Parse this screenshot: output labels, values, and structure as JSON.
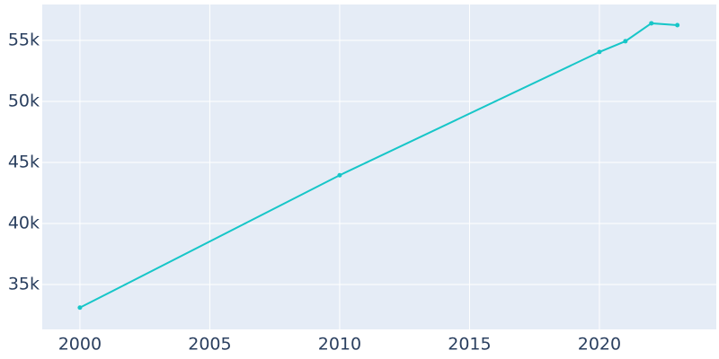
{
  "chart_data": {
    "type": "line",
    "x": [
      2000,
      2010,
      2020,
      2021,
      2022,
      2023
    ],
    "series": [
      {
        "color": "#17c6c8",
        "values": [
          33100,
          43950,
          54050,
          54930,
          56400,
          56250
        ]
      }
    ],
    "xlim": [
      1998.55,
      2024.5
    ],
    "xticks": [
      2000,
      2005,
      2010,
      2015,
      2020
    ],
    "ylim": [
      31320,
      57940
    ],
    "yticks": [
      {
        "value": 35000,
        "label": "35k"
      },
      {
        "value": 40000,
        "label": "40k"
      },
      {
        "value": 45000,
        "label": "45k"
      },
      {
        "value": 50000,
        "label": "50k"
      },
      {
        "value": 55000,
        "label": "55k"
      }
    ],
    "grid": true,
    "background": "#e5ecf6"
  }
}
